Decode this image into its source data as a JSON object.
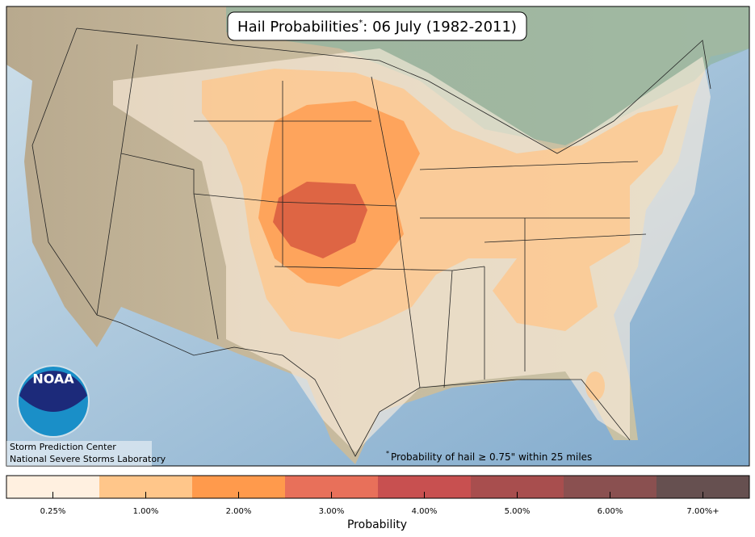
{
  "header": {
    "title": "Hail Probabilities",
    "title_mark": "*",
    "title_rest": ": 06 July (1982-2011)"
  },
  "logo": {
    "text": "NOAA"
  },
  "credits": [
    "Storm Prediction Center",
    "National Severe Storms Laboratory"
  ],
  "footnote": {
    "mark": "*",
    "text": "Probability of hail ≥ 0.75\" within 25 miles"
  },
  "legend": {
    "title": "Probability",
    "items": [
      {
        "label": "0.25%",
        "color": "#fff0e0"
      },
      {
        "label": "1.00%",
        "color": "#ffc68a"
      },
      {
        "label": "2.00%",
        "color": "#ff9a4c"
      },
      {
        "label": "3.00%",
        "color": "#e8705a"
      },
      {
        "label": "4.00%",
        "color": "#c85050"
      },
      {
        "label": "5.00%",
        "color": "#a84e4e"
      },
      {
        "label": "6.00%",
        "color": "#8a5050"
      },
      {
        "label": "7.00%+",
        "color": "#665050"
      }
    ]
  }
}
